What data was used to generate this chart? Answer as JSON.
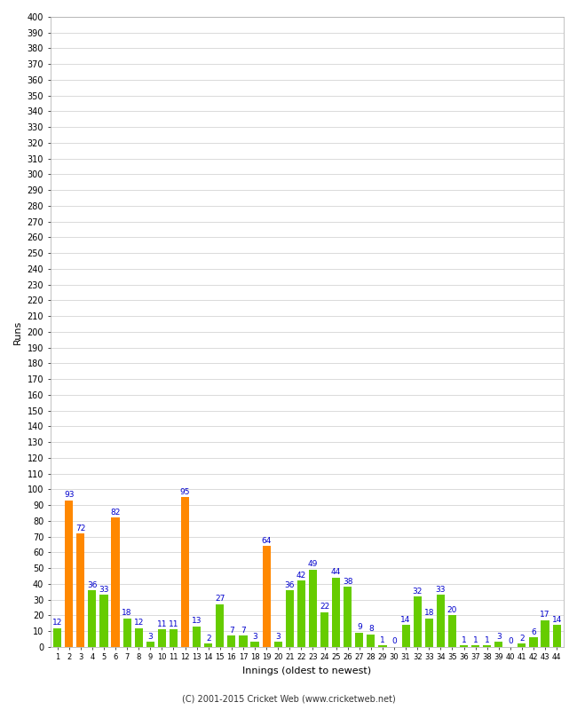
{
  "xlabel": "Innings (oldest to newest)",
  "ylabel": "Runs",
  "innings": [
    1,
    2,
    3,
    4,
    5,
    6,
    7,
    8,
    9,
    10,
    11,
    12,
    13,
    14,
    15,
    16,
    17,
    18,
    19,
    20,
    21,
    22,
    23,
    24,
    25,
    26,
    27,
    28,
    29,
    30,
    31,
    32,
    33,
    34,
    35,
    36,
    37,
    38,
    39,
    40,
    41,
    42,
    43,
    44
  ],
  "values": [
    12,
    93,
    72,
    36,
    33,
    82,
    18,
    12,
    3,
    11,
    11,
    95,
    13,
    2,
    27,
    7,
    7,
    3,
    64,
    3,
    36,
    42,
    49,
    22,
    44,
    38,
    9,
    8,
    1,
    0,
    14,
    32,
    18,
    33,
    20,
    1,
    1,
    1,
    3,
    0,
    2,
    6,
    17,
    14
  ],
  "colors": [
    "#66cc00",
    "#ff8800",
    "#ff8800",
    "#66cc00",
    "#66cc00",
    "#ff8800",
    "#66cc00",
    "#66cc00",
    "#66cc00",
    "#66cc00",
    "#66cc00",
    "#ff8800",
    "#66cc00",
    "#66cc00",
    "#66cc00",
    "#66cc00",
    "#66cc00",
    "#66cc00",
    "#ff8800",
    "#66cc00",
    "#66cc00",
    "#66cc00",
    "#66cc00",
    "#66cc00",
    "#66cc00",
    "#66cc00",
    "#66cc00",
    "#66cc00",
    "#66cc00",
    "#66cc00",
    "#66cc00",
    "#66cc00",
    "#66cc00",
    "#66cc00",
    "#66cc00",
    "#66cc00",
    "#66cc00",
    "#66cc00",
    "#66cc00",
    "#66cc00",
    "#66cc00",
    "#66cc00",
    "#66cc00",
    "#66cc00"
  ],
  "ylim": [
    0,
    400
  ],
  "ytick_step": 10,
  "background_color": "#ffffff",
  "grid_color": "#cccccc",
  "footer": "(C) 2001-2015 Cricket Web (www.cricketweb.net)",
  "label_color": "#0000cc",
  "label_fontsize": 6.5,
  "xlabel_fontsize": 8,
  "ylabel_fontsize": 8,
  "ytick_fontsize": 7,
  "xtick_fontsize": 6
}
